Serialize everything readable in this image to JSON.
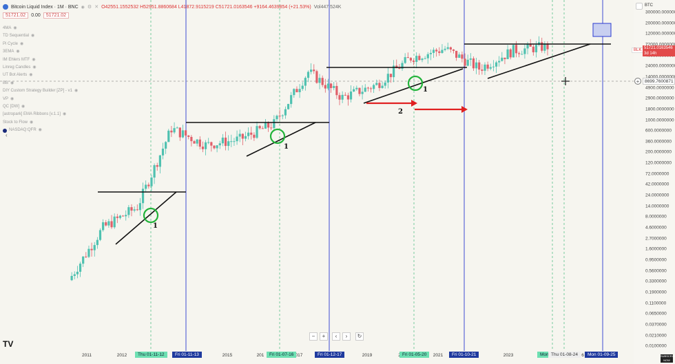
{
  "header": {
    "title": "Bitcoin Liquid Index · 1M · BNC",
    "ohlc": "O42551.1552532 H52951.8860684 L41872.9115219 C51721.0163546 +9164.4639854 (+21.53%)",
    "volume": "Vol447.524K",
    "price_tag_1": "51721.02",
    "price_tag_mid": "0.00",
    "price_tag_2": "51721.02"
  },
  "indicators": [
    "4MA",
    "TD Sequential",
    "Pi Cycle",
    "3EMA",
    "IM Ehlers MTF",
    "Linreg Candles",
    "UT Bot Alerts",
    "BB",
    "DIY Custom Strategy Builder [ZP] - v1",
    "VP",
    "QC [DW]",
    "[astropark] EMA Ribbons [v.1.1]",
    "Stock to Flow",
    "NASDAQ:QFR"
  ],
  "right_axis": {
    "symbol": "BTC",
    "ticks": [
      "300000.0000000",
      "200000.0000000",
      "120000.0000000",
      "72000.0000000",
      "40000.0000000",
      "24000.0000000",
      "14000.0000000",
      "4900.0000000",
      "2900.0000000",
      "1800.0000000",
      "1000.0000000",
      "600.0000000",
      "360.0000000",
      "200.0000000",
      "120.0000000",
      "72.0000000",
      "42.0000000",
      "24.0000000",
      "14.0000000",
      "8.0000000",
      "4.6000000",
      "2.7000000",
      "1.6000000",
      "0.9500000",
      "0.5600000",
      "0.3300000",
      "0.1900000",
      "0.1100000",
      "0.0650000",
      "0.0370000",
      "0.0210000",
      "0.0100000"
    ],
    "blk_label": "BLK",
    "price_label_line1": "51721.0163546",
    "price_label_line2": "3d 14h",
    "crosshair_label": "8699.7600871"
  },
  "x_axis": {
    "labels": [
      "2011",
      "2012",
      "2015",
      "201",
      "017",
      "2019",
      "2",
      "2021",
      "2023",
      "6"
    ],
    "highlights": [
      "Thu 01-11-12",
      "Fri 01-11-13",
      "Fri 01-07-16",
      "Fri 01-12-17",
      "Fri 01-05-20",
      "Fri 01-10-21",
      "Mon",
      "Thu 01-08-24",
      "Mon 01-09-25"
    ]
  },
  "annotations": [
    "1",
    "1",
    "1",
    "2"
  ],
  "toolbar": {
    "zoom_out": "−",
    "zoom_in": "+",
    "back": "‹",
    "forward": "›",
    "reset": "↻"
  },
  "watermark": "SUBSCRIBE NOW",
  "colors": {
    "bull": "#4fc1b0",
    "bear": "#e0606a",
    "green_circle": "#22b33a",
    "red_arrow": "#e02020",
    "blue_line": "#2a3ad0",
    "green_line": "#55c28a"
  },
  "chart_data": {
    "type": "candlestick",
    "title": "Bitcoin Liquid Index · 1M · BNC",
    "y_scale": "log",
    "closes_by_year": [
      {
        "year": "2010",
        "close": 0.3
      },
      {
        "year": "2011",
        "close": 4.5
      },
      {
        "year": "2012",
        "close": 13
      },
      {
        "year": "2013",
        "close": 750
      },
      {
        "year": "2014",
        "close": 320
      },
      {
        "year": "2015",
        "close": 430
      },
      {
        "year": "2016",
        "close": 960
      },
      {
        "year": "2017",
        "close": 14000
      },
      {
        "year": "2018",
        "close": 3700
      },
      {
        "year": "2019",
        "close": 7200
      },
      {
        "year": "2020",
        "close": 29000
      },
      {
        "year": "2021",
        "close": 46000
      },
      {
        "year": "2022",
        "close": 16500
      },
      {
        "year": "2023",
        "close": 42000
      },
      {
        "year": "2024",
        "close": 51721
      }
    ]
  }
}
